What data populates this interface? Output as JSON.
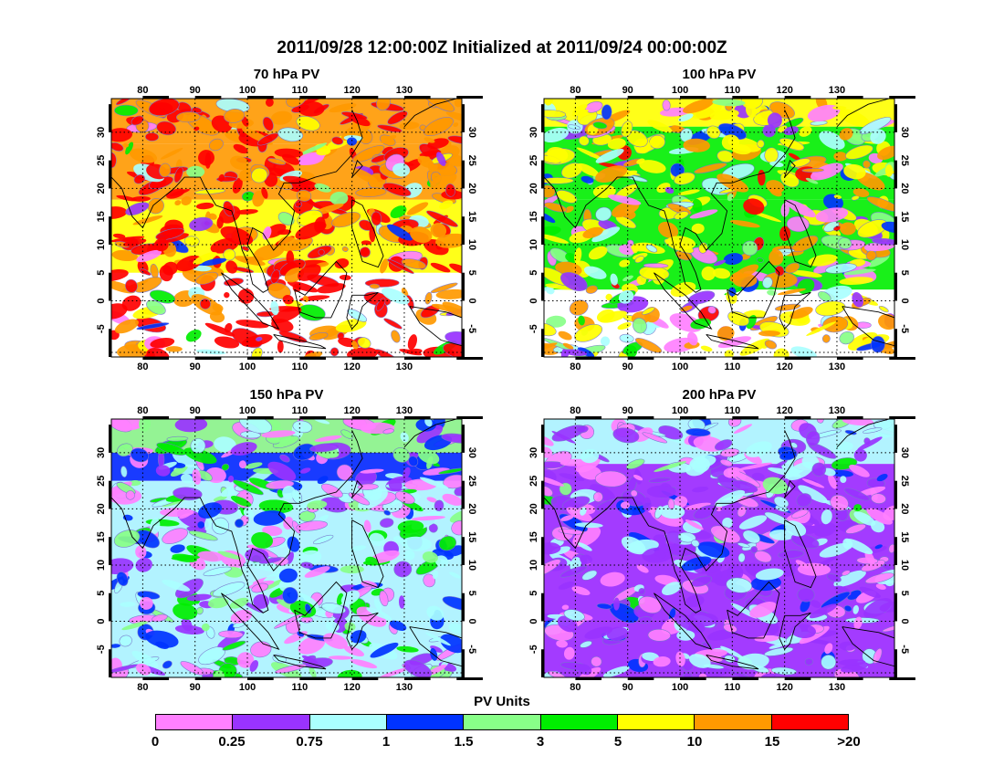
{
  "title": "2011/09/28 12:00:00Z Initialized at 2011/09/24 00:00:00Z",
  "map": {
    "lon_labels": [
      "80",
      "90",
      "100",
      "110",
      "120",
      "130"
    ],
    "lat_labels": [
      "30",
      "25",
      "20",
      "15",
      "10",
      "5",
      "0",
      "-5"
    ]
  },
  "panels": [
    {
      "title": "70 hPa PV",
      "palette_weights": [
        0.02,
        0.02,
        0.03,
        0.02,
        0.02,
        0.02,
        0.05,
        0.32,
        0.36,
        0.14
      ]
    },
    {
      "title": "100 hPa PV",
      "palette_weights": [
        0.08,
        0.05,
        0.07,
        0.05,
        0.07,
        0.08,
        0.34,
        0.22,
        0.03,
        0.01
      ]
    },
    {
      "title": "150 hPa PV",
      "palette_weights": [
        0.28,
        0.14,
        0.22,
        0.13,
        0.1,
        0.13,
        0.0,
        0.0,
        0.0,
        0.0
      ]
    },
    {
      "title": "200 hPa PV",
      "palette_weights": [
        0.3,
        0.28,
        0.3,
        0.08,
        0.02,
        0.02,
        0.0,
        0.0,
        0.0,
        0.0
      ]
    }
  ],
  "legend": {
    "title": "PV Units",
    "labels": [
      "0",
      "0.25",
      "0.75",
      "1",
      "1.5",
      "3",
      "5",
      "10",
      "15",
      ">20"
    ],
    "colors": [
      "#ff80ff",
      "#9933ff",
      "#aaffff",
      "#0033ff",
      "#88ff88",
      "#00ee00",
      "#ffff00",
      "#ff9900",
      "#ff0000",
      "#ff0000"
    ]
  }
}
